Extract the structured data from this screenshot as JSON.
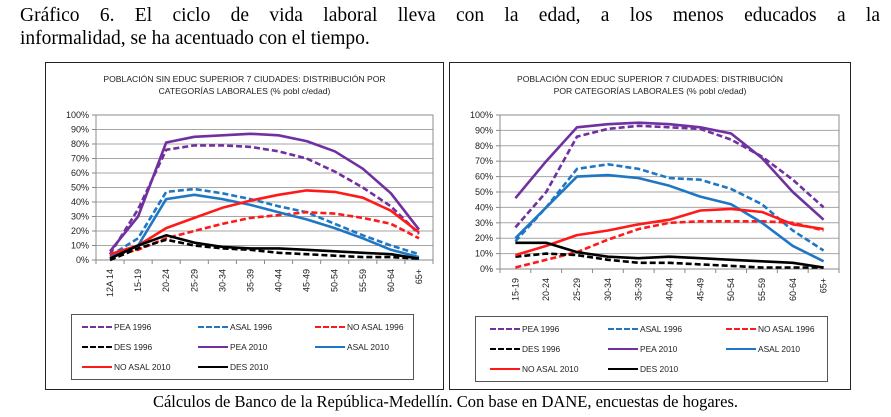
{
  "heading": {
    "line1": "Gráfico 6. El ciclo de vida laboral lleva con la edad, a los menos educados  a la",
    "line2": "informalidad, se ha acentuado con el tiempo."
  },
  "footer": "Cálculos de Banco de la República-Medellín. Con base en DANE, encuestas de hogares.",
  "colors": {
    "PEA": "#7030a0",
    "ASAL": "#1f77c4",
    "NO ASAL": "#ff1a1a",
    "DES": "#000000"
  },
  "chart_data": [
    {
      "type": "line",
      "title": "POBLACIÓN SIN EDUC SUPERIOR 7 CIUDADES: DISTRIBUCIÓN  POR",
      "title_line2": "CATEGORÍAS LABORALES (% pobl c/edad)",
      "xlabel": "",
      "ylabel": "",
      "ylim": [
        0,
        100
      ],
      "yticks": [
        "0%",
        "10%",
        "20%",
        "30%",
        "40%",
        "50%",
        "60%",
        "70%",
        "80%",
        "90%",
        "100%"
      ],
      "grid": true,
      "legend_position": "bottom",
      "categories": [
        "12A 14",
        "15-19",
        "20-24",
        "25-29",
        "30-34",
        "35-39",
        "40-44",
        "45-49",
        "50-54",
        "55-59",
        "60-64",
        "65+"
      ],
      "series": [
        {
          "name": "PEA 1996",
          "color": "#7030a0",
          "style": "dashed",
          "values": [
            4,
            35,
            76,
            79,
            79,
            78,
            75,
            70,
            61,
            50,
            37,
            18
          ]
        },
        {
          "name": "ASAL 1996",
          "color": "#1f77c4",
          "style": "dashed",
          "values": [
            3,
            15,
            47,
            49,
            46,
            42,
            37,
            33,
            25,
            17,
            10,
            4
          ]
        },
        {
          "name": "NO ASAL 1996",
          "color": "#ff1a1a",
          "style": "dashed",
          "values": [
            3,
            7,
            15,
            20,
            25,
            29,
            31,
            33,
            32,
            29,
            25,
            15
          ]
        },
        {
          "name": "DES 1996",
          "color": "#000000",
          "style": "dashed",
          "values": [
            0,
            8,
            14,
            10,
            8,
            7,
            5,
            4,
            3,
            2,
            2,
            1
          ]
        },
        {
          "name": "PEA 2010",
          "color": "#7030a0",
          "style": "solid",
          "values": [
            6,
            30,
            81,
            85,
            86,
            87,
            86,
            82,
            75,
            63,
            46,
            21
          ]
        },
        {
          "name": "ASAL 2010",
          "color": "#1f77c4",
          "style": "solid",
          "values": [
            2,
            10,
            42,
            45,
            42,
            38,
            33,
            28,
            22,
            15,
            7,
            2
          ]
        },
        {
          "name": "NO ASAL 2010",
          "color": "#ff1a1a",
          "style": "solid",
          "values": [
            4,
            10,
            22,
            29,
            36,
            41,
            45,
            48,
            47,
            43,
            34,
            19
          ]
        },
        {
          "name": "DES 2010",
          "color": "#000000",
          "style": "solid",
          "values": [
            1,
            10,
            17,
            12,
            9,
            8,
            8,
            7,
            6,
            5,
            4,
            1
          ]
        }
      ]
    },
    {
      "type": "line",
      "title": "POBLACIÓN CON EDUC SUPERIOR  7 CIUDADES:  DISTRIBUCIÓN",
      "title_line2": "POR CATEGORÍAS LABORALES (% pobl c/edad)",
      "xlabel": "",
      "ylabel": "",
      "ylim": [
        0,
        100
      ],
      "yticks": [
        "0%",
        "10%",
        "20%",
        "30%",
        "40%",
        "50%",
        "60%",
        "70%",
        "80%",
        "90%",
        "100%"
      ],
      "grid": true,
      "legend_position": "bottom",
      "categories": [
        "15-19",
        "20-24",
        "25-29",
        "30-34",
        "35-39",
        "40-44",
        "45-49",
        "50-54",
        "55-59",
        "60-64",
        "65+"
      ],
      "series": [
        {
          "name": "PEA 1996",
          "color": "#7030a0",
          "style": "dashed",
          "values": [
            27,
            50,
            86,
            91,
            93,
            92,
            91,
            84,
            73,
            58,
            40
          ]
        },
        {
          "name": "ASAL 1996",
          "color": "#1f77c4",
          "style": "dashed",
          "values": [
            18,
            40,
            65,
            68,
            65,
            59,
            58,
            52,
            42,
            25,
            12
          ]
        },
        {
          "name": "NO ASAL 1996",
          "color": "#ff1a1a",
          "style": "dashed",
          "values": [
            1,
            6,
            11,
            19,
            26,
            30,
            31,
            31,
            31,
            30,
            25
          ]
        },
        {
          "name": "DES 1996",
          "color": "#000000",
          "style": "dashed",
          "values": [
            8,
            10,
            9,
            6,
            4,
            4,
            3,
            2,
            1,
            1,
            1
          ]
        },
        {
          "name": "PEA 2010",
          "color": "#7030a0",
          "style": "solid",
          "values": [
            46,
            70,
            92,
            94,
            95,
            94,
            92,
            88,
            72,
            50,
            32
          ]
        },
        {
          "name": "ASAL 2010",
          "color": "#1f77c4",
          "style": "solid",
          "values": [
            20,
            40,
            60,
            61,
            59,
            54,
            47,
            42,
            30,
            15,
            5
          ]
        },
        {
          "name": "NO ASAL 2010",
          "color": "#ff1a1a",
          "style": "solid",
          "values": [
            9,
            15,
            22,
            25,
            29,
            32,
            38,
            39,
            37,
            29,
            26
          ]
        },
        {
          "name": "DES 2010",
          "color": "#000000",
          "style": "solid",
          "values": [
            17,
            17,
            11,
            8,
            7,
            8,
            7,
            6,
            5,
            4,
            1
          ]
        }
      ]
    }
  ]
}
